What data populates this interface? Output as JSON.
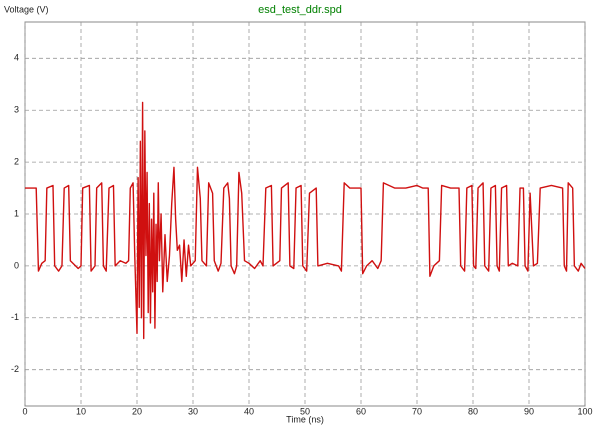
{
  "chart_data": {
    "type": "line",
    "title": "esd_test_ddr.spd",
    "ylabel": "Voltage (V)",
    "xlabel": "Time (ns)",
    "color": "#d01010",
    "title_color": "#008000",
    "grid": true,
    "xlim": [
      0,
      100
    ],
    "ylim": [
      -2.7,
      4.7
    ],
    "xticks": [
      0,
      10,
      20,
      30,
      40,
      50,
      60,
      70,
      80,
      90,
      100
    ],
    "yticks": [
      -2,
      -1,
      0,
      1,
      2,
      3,
      4
    ],
    "x": [
      0,
      2,
      2.4,
      3,
      3.6,
      3.9,
      5,
      5.3,
      6,
      6.6,
      7,
      7.8,
      8.1,
      9.5,
      10,
      10.3,
      11.5,
      11.8,
      12.5,
      12.8,
      13.7,
      14,
      14.5,
      15,
      15.8,
      16.1,
      17,
      18,
      18.5,
      18.8,
      19.3,
      19.6,
      20,
      20.2,
      20.4,
      20.6,
      20.8,
      21,
      21.2,
      21.4,
      21.6,
      21.8,
      22,
      22.2,
      22.4,
      22.6,
      22.8,
      23,
      23.2,
      23.4,
      23.6,
      23.8,
      24,
      24.3,
      24.6,
      25,
      25.4,
      25.8,
      26.2,
      26.6,
      26.9,
      27.2,
      27.6,
      28,
      28.4,
      28.8,
      29.2,
      29.6,
      30,
      30.4,
      30.8,
      31.3,
      31.6,
      32.4,
      32.8,
      33.5,
      33.8,
      34.5,
      35,
      35.5,
      36.2,
      36.5,
      36.8,
      37.4,
      37.8,
      38.2,
      38.7,
      39.2,
      40,
      41,
      42,
      42.5,
      43,
      44,
      44.3,
      45.5,
      45.8,
      47,
      47.3,
      48,
      48.4,
      49.3,
      49.6,
      50.3,
      50.8,
      52,
      52.3,
      54,
      56,
      56.5,
      57,
      58,
      60,
      60.3,
      61,
      62,
      63,
      63.6,
      64,
      66,
      68,
      70,
      71,
      72,
      72.3,
      73,
      74,
      74.4,
      76,
      77.5,
      77.8,
      78.5,
      78.9,
      79.8,
      80.1,
      80.5,
      80.9,
      81.8,
      82.1,
      82.8,
      83.2,
      84,
      84.3,
      84.7,
      85.1,
      86,
      86.3,
      87,
      88,
      88.4,
      89,
      89.3,
      89.8,
      90.2,
      90.8,
      91.5,
      92,
      94,
      96,
      96.3,
      96.7,
      97,
      97.8,
      98.1,
      98.8,
      99.3,
      100
    ],
    "values": [
      1.5,
      1.5,
      -0.1,
      0.05,
      0.1,
      1.5,
      1.55,
      0,
      -0.1,
      0,
      1.5,
      1.55,
      0.1,
      -0.05,
      0,
      1.5,
      1.55,
      -0.1,
      0,
      1.5,
      1.6,
      0,
      -0.1,
      1.5,
      1.55,
      0,
      0.1,
      0.05,
      0.1,
      1.5,
      1.6,
      0.2,
      -1.3,
      1.7,
      -0.8,
      2.4,
      -1.0,
      3.15,
      -1.4,
      2.6,
      0.2,
      1.8,
      -0.9,
      1.2,
      -1.1,
      0.9,
      -0.5,
      1.4,
      -1.2,
      0.8,
      -0.3,
      1.6,
      0.1,
      1.0,
      -0.5,
      0.6,
      -0.3,
      0.2,
      1.2,
      1.9,
      0.9,
      0.3,
      0.4,
      -0.3,
      0.5,
      -0.2,
      0.4,
      0,
      0.05,
      0.1,
      1.9,
      1.3,
      0.1,
      0,
      1.6,
      1.4,
      0.1,
      -0.1,
      0.05,
      1.5,
      1.6,
      1.3,
      0,
      -0.15,
      0,
      1.8,
      1.4,
      0.1,
      0.05,
      -0.05,
      0.1,
      0,
      1.5,
      1.55,
      0,
      0.1,
      1.5,
      1.6,
      0,
      -0.05,
      1.5,
      1.55,
      0,
      -0.1,
      1.4,
      1.5,
      0,
      0.05,
      0,
      -0.1,
      1.6,
      1.5,
      1.5,
      -0.15,
      0,
      0.1,
      -0.05,
      0.1,
      1.6,
      1.5,
      1.5,
      1.55,
      1.5,
      1.5,
      -0.2,
      0,
      0.1,
      1.55,
      1.5,
      1.5,
      0,
      -0.1,
      1.5,
      1.55,
      0,
      -0.05,
      1.5,
      1.6,
      0,
      -0.1,
      1.5,
      1.55,
      0,
      -0.1,
      1.5,
      1.55,
      0,
      0.05,
      0,
      1.5,
      1.5,
      0,
      -0.1,
      1.4,
      0,
      0.05,
      1.5,
      1.55,
      1.5,
      0,
      -0.1,
      1.6,
      1.5,
      0,
      -0.1,
      0.05,
      -0.05
    ]
  }
}
